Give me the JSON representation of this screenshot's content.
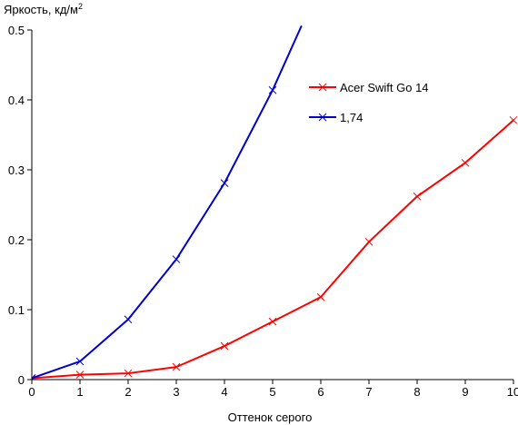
{
  "chart_data": {
    "type": "line",
    "ylabel": "Яркость, кд/м",
    "ylabel_superscript": "2",
    "xlabel": "Оттенок серого",
    "xlim": [
      0,
      10
    ],
    "ylim": [
      0,
      0.5
    ],
    "xticks": [
      "0",
      "1",
      "2",
      "3",
      "4",
      "5",
      "6",
      "7",
      "8",
      "9",
      "10"
    ],
    "yticks": [
      "0",
      "0.1",
      "0.2",
      "0.3",
      "0.4",
      "0.5"
    ],
    "grid": false,
    "legend_position": "top-right",
    "series": [
      {
        "name": "Acer Swift Go 14",
        "color": "#ff0000",
        "marker": "x",
        "x": [
          0,
          1,
          2,
          3,
          4,
          5,
          6,
          7,
          8,
          9,
          10
        ],
        "y": [
          0.002,
          0.007,
          0.009,
          0.018,
          0.048,
          0.083,
          0.118,
          0.197,
          0.262,
          0.31,
          0.371
        ]
      },
      {
        "name": "1,74",
        "color": "#0000cc",
        "marker": "x",
        "x": [
          0,
          1,
          2,
          3,
          4,
          5,
          5.6
        ],
        "y": [
          0.002,
          0.026,
          0.086,
          0.172,
          0.281,
          0.414,
          0.506
        ]
      }
    ]
  }
}
